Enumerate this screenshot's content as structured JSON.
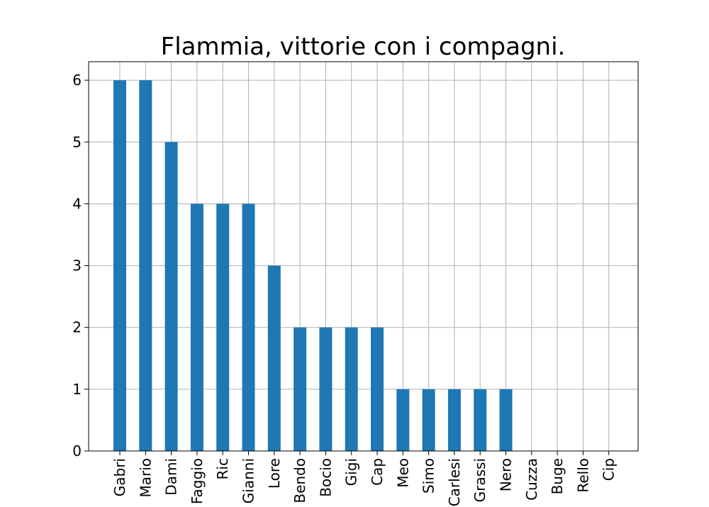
{
  "chart_data": {
    "type": "bar",
    "title": "Flammia, vittorie con i compagni.",
    "xlabel": "",
    "ylabel": "",
    "categories": [
      "Gabri",
      "Mario",
      "Dami",
      "Faggio",
      "Ric",
      "Gianni",
      "Lore",
      "Bendo",
      "Bocio",
      "Gigi",
      "Cap",
      "Meo",
      "Simo",
      "Carlesi",
      "Grassi",
      "Nero",
      "Cuzza",
      "Buge",
      "Rello",
      "Cip"
    ],
    "values": [
      6,
      6,
      5,
      4,
      4,
      4,
      3,
      2,
      2,
      2,
      2,
      1,
      1,
      1,
      1,
      1,
      0,
      0,
      0,
      0
    ],
    "ylim": [
      0,
      6.3
    ],
    "yticks": [
      0,
      1,
      2,
      3,
      4,
      5,
      6
    ],
    "grid": true,
    "bar_color": "#1f77b4"
  }
}
